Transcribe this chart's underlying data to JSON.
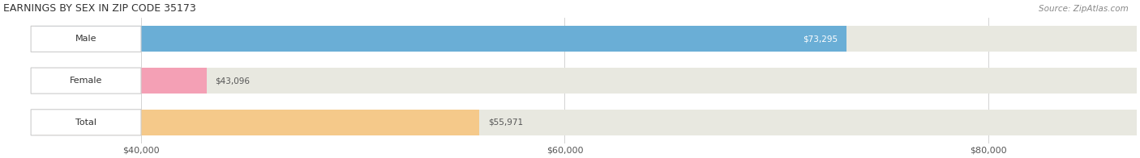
{
  "title": "EARNINGS BY SEX IN ZIP CODE 35173",
  "source": "Source: ZipAtlas.com",
  "categories": [
    "Male",
    "Female",
    "Total"
  ],
  "values": [
    73295,
    43096,
    55971
  ],
  "bar_colors": [
    "#6aaed6",
    "#f4a0b5",
    "#f5c98a"
  ],
  "bar_bg_color": "#e8e8e0",
  "x_min": 35000,
  "x_max": 87000,
  "tick_values": [
    40000,
    60000,
    80000
  ],
  "tick_labels": [
    "$40,000",
    "$60,000",
    "$80,000"
  ],
  "value_labels": [
    "$73,295",
    "$43,096",
    "$55,971"
  ],
  "figsize": [
    14.06,
    1.96
  ],
  "dpi": 100
}
